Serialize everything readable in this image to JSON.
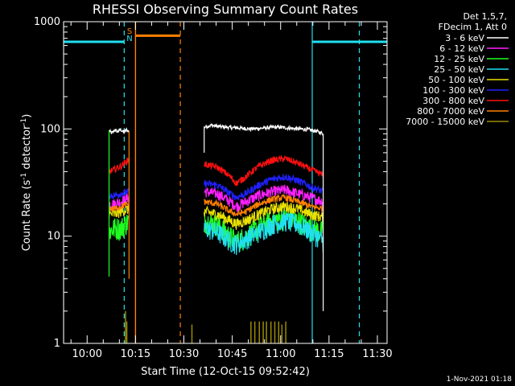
{
  "chart_data": {
    "type": "line",
    "title": "RHESSI Observing Summary Count Rates",
    "xlabel": "Start Time (12-Oct-15 09:52:42)",
    "ylabel": "Count Rate (s",
    "ylabel_sup": "-1",
    "ylabel_rest": " detector",
    "ylabel_sup2": "-1",
    "ylabel_end": ")",
    "x_ticks": [
      "10:00",
      "10:15",
      "10:30",
      "10:45",
      "11:00",
      "11:15",
      "11:30"
    ],
    "x_tick_minutes": [
      600,
      615,
      630,
      645,
      660,
      675,
      690
    ],
    "xlim_minutes": [
      592.7,
      693
    ],
    "y_scale": "log",
    "ylim": [
      1,
      1000
    ],
    "y_ticks": [
      "1",
      "10",
      "100",
      "1000"
    ],
    "y_tick_values": [
      1,
      10,
      100,
      1000
    ],
    "legend_header": [
      "Det 1,5,7,",
      "FDecim 1, Att 0"
    ],
    "timestamp": "1-Nov-2021 01:18",
    "flag_labels": {
      "s": "S",
      "n": "N"
    },
    "colors": {
      "night": "#20e0f0",
      "saa": "#ff8000",
      "axes": "#ffffff"
    },
    "series": [
      {
        "name": "3 - 6 keV",
        "color": "#ffffff",
        "legend_color": "#000000",
        "seg1": [
          [
            606.8,
            96
          ],
          [
            607.7,
            91
          ],
          [
            608.6,
            98
          ],
          [
            609.5,
            94
          ],
          [
            610.4,
            99
          ],
          [
            611.3,
            93
          ],
          [
            612.2,
            98
          ],
          [
            613.0,
            95
          ]
        ],
        "seg2": [
          [
            636.3,
            104
          ],
          [
            638.3,
            108
          ],
          [
            641.3,
            105
          ],
          [
            644.3,
            103
          ],
          [
            647.3,
            102
          ],
          [
            650.3,
            100
          ],
          [
            653.3,
            101
          ],
          [
            656.3,
            103
          ],
          [
            659.3,
            104
          ],
          [
            662.3,
            102
          ],
          [
            665.3,
            100
          ],
          [
            668.3,
            99
          ],
          [
            671.3,
            95
          ],
          [
            673.2,
            90
          ]
        ]
      },
      {
        "name": "6 - 12 keV",
        "color": "#ff20ff",
        "legend_color": "#ff20ff",
        "seg1": [
          [
            606.8,
            20
          ],
          [
            608.5,
            20
          ],
          [
            610.5,
            21
          ],
          [
            613.0,
            23
          ]
        ],
        "seg2": [
          [
            636.3,
            26
          ],
          [
            640.3,
            25
          ],
          [
            644.3,
            21
          ],
          [
            646.3,
            19
          ],
          [
            649.3,
            21
          ],
          [
            653.3,
            24
          ],
          [
            657.3,
            26
          ],
          [
            661.3,
            27
          ],
          [
            665.3,
            25
          ],
          [
            669.3,
            23
          ],
          [
            673.2,
            21
          ]
        ]
      },
      {
        "name": "12 - 25 keV",
        "color": "#20ff20",
        "legend_color": "#20ff20",
        "seg1": [
          [
            606.8,
            11
          ],
          [
            608.5,
            12
          ],
          [
            610.5,
            12
          ],
          [
            613.0,
            14
          ]
        ],
        "seg2": [
          [
            636.3,
            14
          ],
          [
            640.3,
            13
          ],
          [
            644.3,
            10
          ],
          [
            646.3,
            9
          ],
          [
            649.3,
            10
          ],
          [
            653.3,
            12
          ],
          [
            657.3,
            14
          ],
          [
            661.3,
            15
          ],
          [
            665.3,
            14
          ],
          [
            669.3,
            12
          ],
          [
            673.2,
            11
          ]
        ]
      },
      {
        "name": "25 - 50 keV",
        "color": "#20e0f0",
        "legend_color": "#20e0f0",
        "seg1": [],
        "seg2": [
          [
            636.3,
            12
          ],
          [
            640.3,
            11
          ],
          [
            644.3,
            9
          ],
          [
            646.3,
            8.5
          ],
          [
            649.3,
            9.5
          ],
          [
            653.3,
            11
          ],
          [
            657.3,
            13
          ],
          [
            661.3,
            14
          ],
          [
            665.3,
            13
          ],
          [
            669.3,
            11
          ],
          [
            673.2,
            9
          ]
        ]
      },
      {
        "name": "50 - 100 keV",
        "color": "#e8e000",
        "legend_color": "#e8e000",
        "seg1": [
          [
            606.8,
            16
          ],
          [
            608.5,
            16
          ],
          [
            610.5,
            17
          ],
          [
            613.0,
            18
          ]
        ],
        "seg2": [
          [
            636.3,
            17
          ],
          [
            640.3,
            16
          ],
          [
            644.3,
            14
          ],
          [
            646.3,
            13
          ],
          [
            649.3,
            14
          ],
          [
            653.3,
            16
          ],
          [
            657.3,
            18
          ],
          [
            661.3,
            19
          ],
          [
            665.3,
            18
          ],
          [
            669.3,
            16
          ],
          [
            673.2,
            15
          ]
        ]
      },
      {
        "name": "100 - 300 keV",
        "color": "#2020ff",
        "legend_color": "#2020ff",
        "seg1": [
          [
            606.8,
            24
          ],
          [
            608.5,
            24
          ],
          [
            610.5,
            25
          ],
          [
            613.0,
            26
          ]
        ],
        "seg2": [
          [
            636.3,
            31
          ],
          [
            640.3,
            30
          ],
          [
            644.3,
            25
          ],
          [
            646.3,
            23
          ],
          [
            649.3,
            25
          ],
          [
            653.3,
            30
          ],
          [
            657.3,
            34
          ],
          [
            661.3,
            36
          ],
          [
            665.3,
            33
          ],
          [
            669.3,
            29
          ],
          [
            673.2,
            26
          ]
        ]
      },
      {
        "name": "300 - 800 keV",
        "color": "#ff1010",
        "legend_color": "#ff1010",
        "seg1": [
          [
            606.8,
            40
          ],
          [
            608.5,
            42
          ],
          [
            610.5,
            45
          ],
          [
            613.0,
            52
          ]
        ],
        "seg2": [
          [
            636.3,
            47
          ],
          [
            640.3,
            44
          ],
          [
            644.3,
            36
          ],
          [
            646.3,
            31
          ],
          [
            649.3,
            36
          ],
          [
            653.3,
            45
          ],
          [
            657.3,
            51
          ],
          [
            661.3,
            53
          ],
          [
            665.3,
            48
          ],
          [
            669.3,
            42
          ],
          [
            673.2,
            37
          ]
        ]
      },
      {
        "name": "800 - 7000 keV",
        "color": "#ff8000",
        "legend_color": "#ff8000",
        "seg1": [
          [
            606.8,
            18
          ],
          [
            608.5,
            18
          ],
          [
            610.5,
            19
          ],
          [
            613.0,
            20
          ]
        ],
        "seg2": [
          [
            636.3,
            21
          ],
          [
            640.3,
            20
          ],
          [
            644.3,
            17
          ],
          [
            646.3,
            16
          ],
          [
            649.3,
            17
          ],
          [
            653.3,
            20
          ],
          [
            657.3,
            22
          ],
          [
            661.3,
            23
          ],
          [
            665.3,
            21
          ],
          [
            669.3,
            19
          ],
          [
            673.2,
            18
          ]
        ]
      },
      {
        "name": "7000 - 15000 keV",
        "color": "#9a8a00",
        "legend_color": "#9a8a00",
        "seg1": [],
        "seg2": []
      }
    ],
    "night_intervals": [
      [
        592.7,
        611.5
      ],
      [
        669.8,
        693
      ]
    ],
    "night_bar_level": 650,
    "night_solid_lines": [
      592.7,
      669.8
    ],
    "night_dashed_lines": [
      611.5,
      684.4
    ],
    "saa_interval": [
      615.0,
      628.9
    ],
    "saa_bar_level": 740,
    "saa_solid_line": 615.0,
    "saa_dashed_line": 628.9,
    "olive_spikes": [
      [
        611.9,
        2.0
      ],
      [
        612.3,
        1.6
      ],
      [
        632.5,
        1.5
      ],
      [
        650.8,
        1.6
      ],
      [
        652.0,
        1.6
      ],
      [
        653.4,
        1.6
      ],
      [
        654.6,
        1.6
      ],
      [
        655.6,
        1.6
      ],
      [
        657.0,
        1.6
      ],
      [
        658.2,
        1.6
      ],
      [
        659.4,
        1.6
      ],
      [
        660.4,
        1.5
      ],
      [
        661.6,
        1.6
      ]
    ]
  }
}
